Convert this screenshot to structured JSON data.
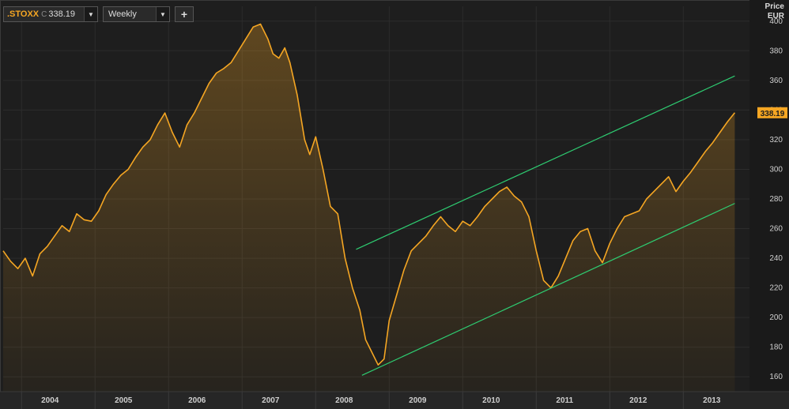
{
  "toolbar": {
    "symbol": ".STOXX",
    "close_prefix": "C",
    "close_value": "338.19",
    "period": "Weekly",
    "add_label": "+"
  },
  "axis_header": {
    "line1": "Price",
    "line2": "EUR"
  },
  "colors": {
    "price_line": "#f5a623",
    "channel": "#2ecc71",
    "background": "#1e1e1e",
    "grid": "#2c2c2c"
  },
  "chart_data": {
    "type": "area",
    "title": "",
    "ylabel": "Price EUR",
    "ylim": [
      150,
      410
    ],
    "yticks": [
      160,
      180,
      200,
      220,
      240,
      260,
      280,
      300,
      320,
      340,
      360,
      380,
      400
    ],
    "xlim": [
      2003.75,
      2013.9
    ],
    "xticks": [
      "2004",
      "2005",
      "2006",
      "2007",
      "2008",
      "2009",
      "2010",
      "2011",
      "2012",
      "2013"
    ],
    "grid": true,
    "last_value_label": "338.19",
    "series": [
      {
        "x": [
          2003.75,
          2003.85,
          2003.95,
          2004.05,
          2004.15,
          2004.25,
          2004.35,
          2004.45,
          2004.55,
          2004.65,
          2004.75,
          2004.85,
          2004.95,
          2005.05,
          2005.15,
          2005.25,
          2005.35,
          2005.45,
          2005.55,
          2005.65,
          2005.75,
          2005.85,
          2005.95,
          2006.05,
          2006.15,
          2006.25,
          2006.35,
          2006.45,
          2006.55,
          2006.65,
          2006.75,
          2006.85,
          2006.95,
          2007.05,
          2007.15,
          2007.25,
          2007.35,
          2007.42,
          2007.5,
          2007.58,
          2007.65,
          2007.75,
          2007.85,
          2007.92,
          2008.0,
          2008.1,
          2008.2,
          2008.3,
          2008.4,
          2008.5,
          2008.6,
          2008.68,
          2008.75,
          2008.85,
          2008.93,
          2009.0,
          2009.1,
          2009.2,
          2009.3,
          2009.4,
          2009.5,
          2009.6,
          2009.7,
          2009.8,
          2009.9,
          2010.0,
          2010.1,
          2010.2,
          2010.3,
          2010.4,
          2010.5,
          2010.6,
          2010.7,
          2010.8,
          2010.9,
          2011.0,
          2011.1,
          2011.2,
          2011.3,
          2011.4,
          2011.5,
          2011.6,
          2011.7,
          2011.8,
          2011.9,
          2012.0,
          2012.1,
          2012.2,
          2012.3,
          2012.4,
          2012.5,
          2012.6,
          2012.7,
          2012.8,
          2012.9,
          2013.0,
          2013.1,
          2013.2,
          2013.3,
          2013.4,
          2013.5,
          2013.6,
          2013.7
        ],
        "values": [
          245,
          238,
          233,
          240,
          228,
          243,
          248,
          255,
          262,
          258,
          270,
          266,
          265,
          272,
          283,
          290,
          296,
          300,
          308,
          315,
          320,
          330,
          338,
          325,
          315,
          330,
          338,
          348,
          358,
          365,
          368,
          372,
          380,
          388,
          396,
          398,
          388,
          378,
          375,
          382,
          372,
          350,
          320,
          310,
          322,
          300,
          275,
          270,
          240,
          220,
          205,
          185,
          178,
          168,
          172,
          198,
          215,
          232,
          245,
          250,
          255,
          262,
          268,
          262,
          258,
          265,
          262,
          268,
          275,
          280,
          285,
          288,
          282,
          278,
          268,
          245,
          225,
          220,
          228,
          240,
          252,
          258,
          260,
          245,
          237,
          250,
          260,
          268,
          270,
          272,
          280,
          285,
          290,
          295,
          285,
          292,
          298,
          305,
          312,
          318,
          325,
          332,
          338.19
        ]
      },
      {
        "name": "",
        "x": [
          2008.55,
          2013.7
        ],
        "values": [
          246,
          363
        ]
      },
      {
        "name": "",
        "x": [
          2008.63,
          2013.7
        ],
        "values": [
          161,
          277
        ]
      }
    ]
  }
}
